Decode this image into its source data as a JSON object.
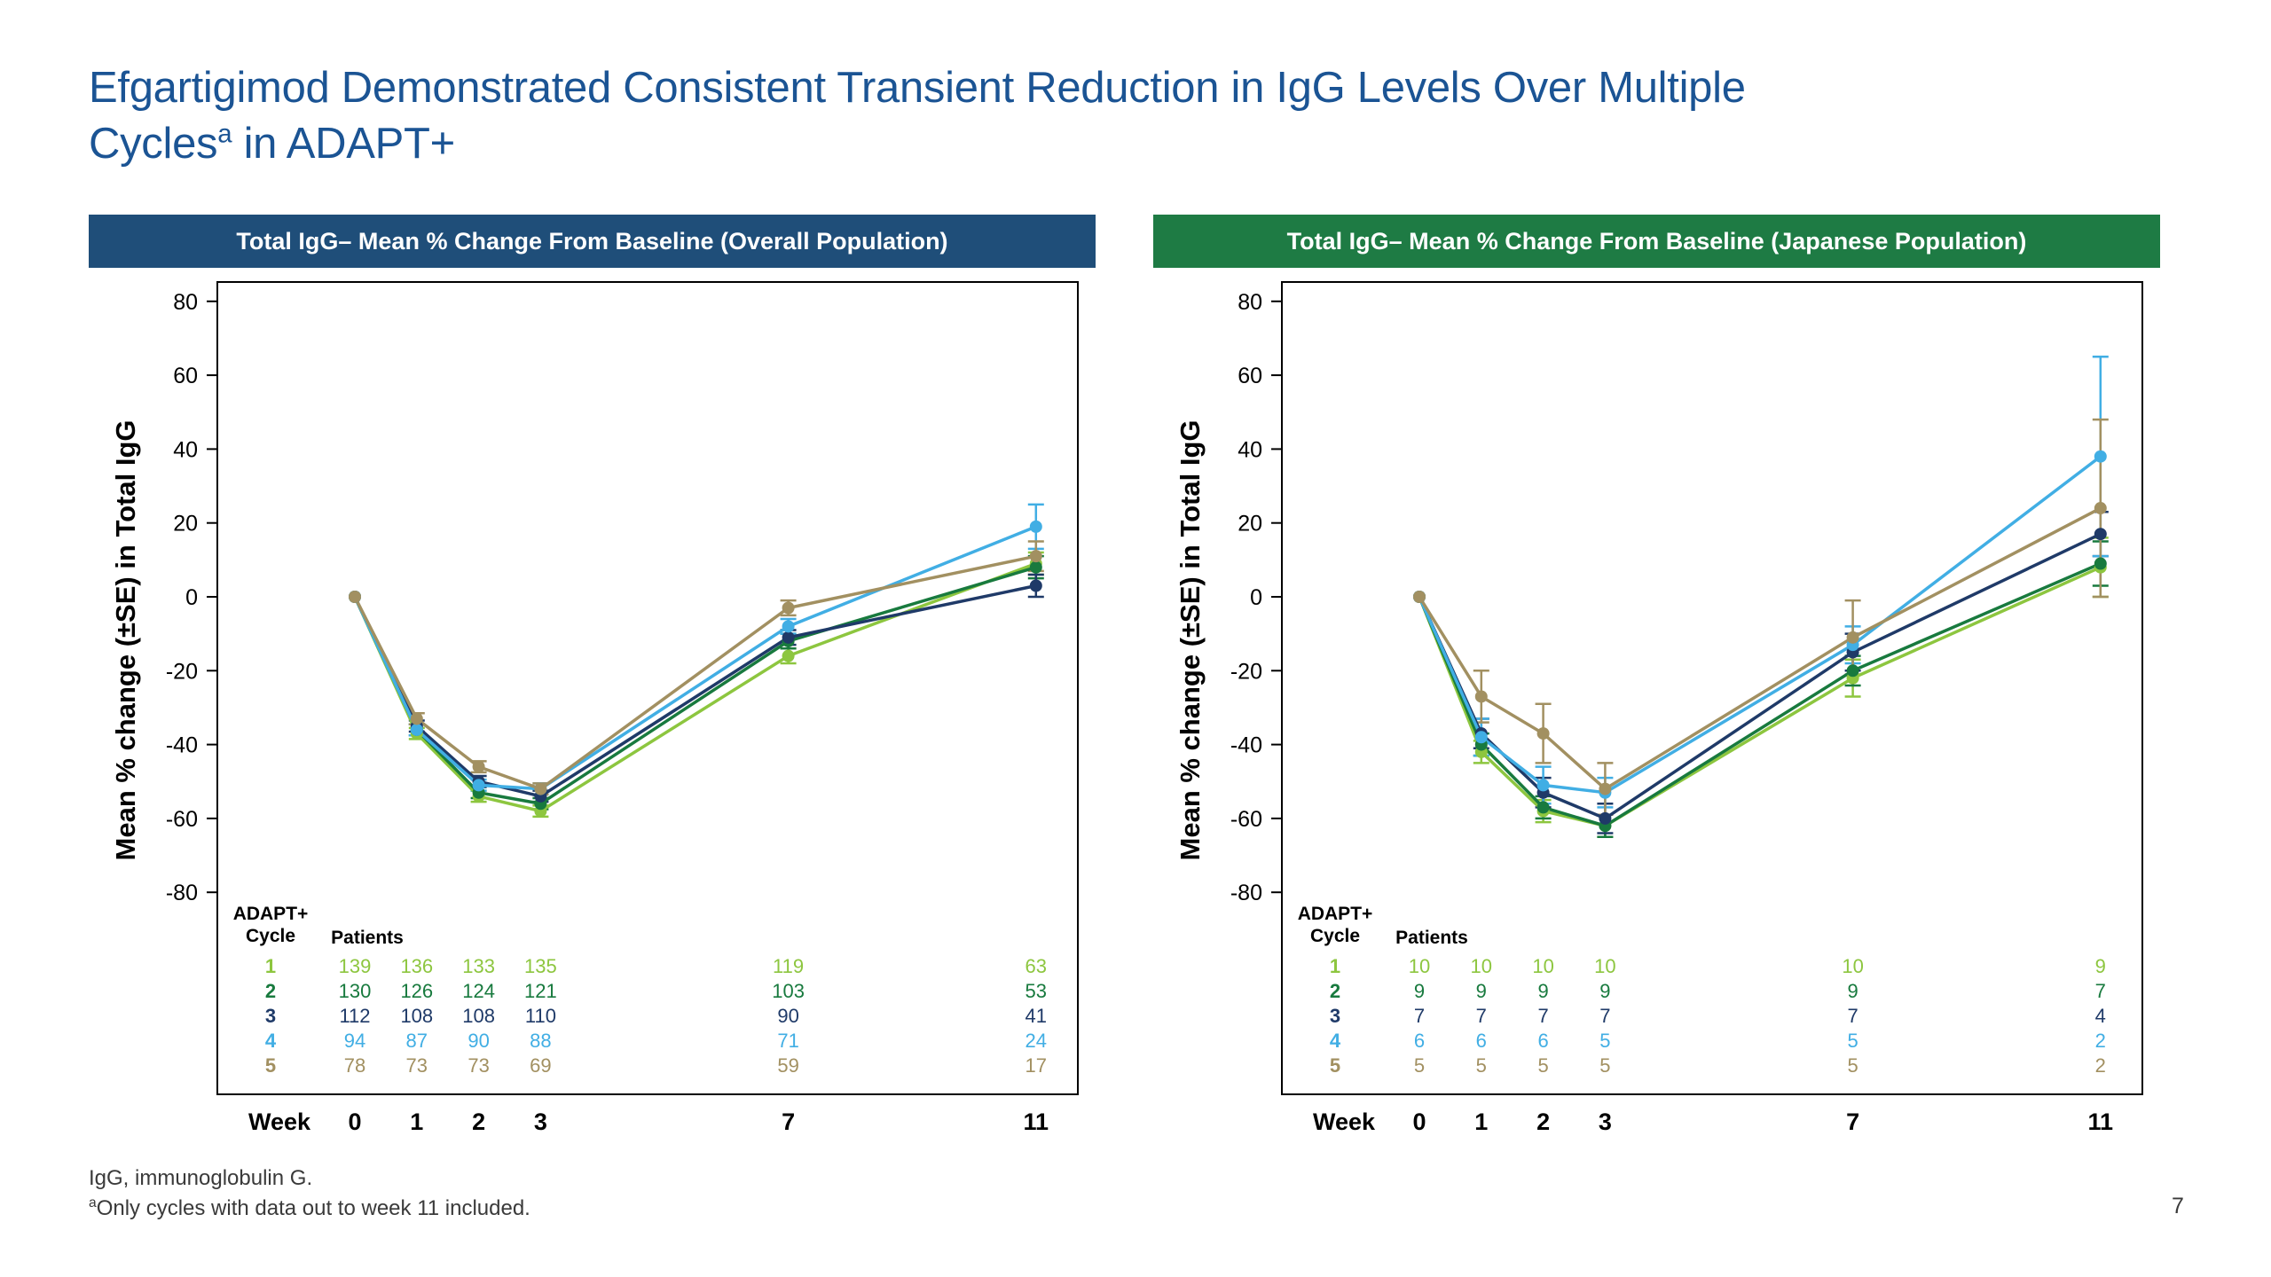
{
  "slide": {
    "title_line1": "Efgartigimod Demonstrated Consistent Transient Reduction in IgG Levels Over Multiple",
    "title_line2_pre": "Cycles",
    "title_line2_sup": "a",
    "title_line2_post": " in ADAPT+",
    "footnote1": "IgG, immunoglobulin G.",
    "footnote2_sup": "a",
    "footnote2_text": "Only cycles with data out to week 11 included.",
    "page_number": "7",
    "colors": {
      "title_text": "#1B5494",
      "header_overall": "#1F4E79",
      "header_japanese": "#1E7B44"
    }
  },
  "chart_data": [
    {
      "type": "line",
      "title": "Total IgG– Mean % Change From Baseline (Overall Population)",
      "header_color": "#1F4E79",
      "ylabel": "Mean % change (±SE) in Total IgG",
      "xlabel": "Week",
      "x_weeks": [
        0,
        1,
        2,
        3,
        7,
        11
      ],
      "ylim": [
        -80,
        80
      ],
      "yticks": [
        80,
        60,
        40,
        20,
        0,
        -20,
        -40,
        -60,
        -80
      ],
      "grid": false,
      "legend": "none (series color-coded in patients table)",
      "table": {
        "col1_header_line1": "ADAPT+",
        "col1_header_line2": "Cycle",
        "col2_header": "Patients"
      },
      "series": [
        {
          "name": "1",
          "color": "#8DC63F",
          "values": [
            0,
            -37,
            -54,
            -58,
            -16,
            9
          ],
          "se": [
            0,
            1.5,
            1.5,
            1.5,
            2,
            3
          ],
          "patients": [
            139,
            136,
            133,
            135,
            119,
            63
          ]
        },
        {
          "name": "2",
          "color": "#187A3E",
          "values": [
            0,
            -36,
            -53,
            -56,
            -12,
            8
          ],
          "se": [
            0,
            1.5,
            1.5,
            1.5,
            2,
            3
          ],
          "patients": [
            130,
            126,
            124,
            121,
            103,
            53
          ]
        },
        {
          "name": "3",
          "color": "#1F3A68",
          "values": [
            0,
            -35,
            -50,
            -54,
            -11,
            3
          ],
          "se": [
            0,
            1.5,
            1.5,
            1.5,
            2,
            3
          ],
          "patients": [
            112,
            108,
            108,
            110,
            90,
            41
          ]
        },
        {
          "name": "4",
          "color": "#41AEE4",
          "values": [
            0,
            -36,
            -51,
            -52,
            -8,
            19
          ],
          "se": [
            0,
            1.5,
            1.5,
            1.5,
            2,
            6
          ],
          "patients": [
            94,
            87,
            90,
            88,
            71,
            24
          ]
        },
        {
          "name": "5",
          "color": "#A29061",
          "values": [
            0,
            -33,
            -46,
            -52,
            -3,
            11
          ],
          "se": [
            0,
            1.5,
            1.5,
            1.5,
            2,
            4
          ],
          "patients": [
            78,
            73,
            73,
            69,
            59,
            17
          ]
        }
      ]
    },
    {
      "type": "line",
      "title": "Total IgG– Mean % Change From Baseline (Japanese Population)",
      "header_color": "#1E7B44",
      "ylabel": "Mean % change (±SE) in Total IgG",
      "xlabel": "Week",
      "x_weeks": [
        0,
        1,
        2,
        3,
        7,
        11
      ],
      "ylim": [
        -80,
        80
      ],
      "yticks": [
        80,
        60,
        40,
        20,
        0,
        -20,
        -40,
        -60,
        -80
      ],
      "grid": false,
      "legend": "none (series color-coded in patients table)",
      "table": {
        "col1_header_line1": "ADAPT+",
        "col1_header_line2": "Cycle",
        "col2_header": "Patients"
      },
      "series": [
        {
          "name": "1",
          "color": "#8DC63F",
          "values": [
            0,
            -42,
            -58,
            -62,
            -22,
            8
          ],
          "se": [
            0,
            3,
            3,
            3,
            5,
            8
          ],
          "patients": [
            10,
            10,
            10,
            10,
            10,
            9
          ]
        },
        {
          "name": "2",
          "color": "#187A3E",
          "values": [
            0,
            -40,
            -57,
            -62,
            -20,
            9
          ],
          "se": [
            0,
            3,
            3,
            3,
            4,
            6
          ],
          "patients": [
            9,
            9,
            9,
            9,
            9,
            7
          ]
        },
        {
          "name": "3",
          "color": "#1F3A68",
          "values": [
            0,
            -37,
            -53,
            -60,
            -15,
            17
          ],
          "se": [
            0,
            4,
            4,
            4,
            5,
            6
          ],
          "patients": [
            7,
            7,
            7,
            7,
            7,
            4
          ]
        },
        {
          "name": "4",
          "color": "#41AEE4",
          "values": [
            0,
            -38,
            -51,
            -53,
            -13,
            38
          ],
          "se": [
            0,
            5,
            5,
            4,
            5,
            27
          ],
          "patients": [
            6,
            6,
            6,
            5,
            5,
            2
          ]
        },
        {
          "name": "5",
          "color": "#A29061",
          "values": [
            0,
            -27,
            -37,
            -52,
            -11,
            24
          ],
          "se": [
            0,
            7,
            8,
            7,
            10,
            24
          ],
          "patients": [
            5,
            5,
            5,
            5,
            5,
            2
          ]
        }
      ]
    }
  ]
}
